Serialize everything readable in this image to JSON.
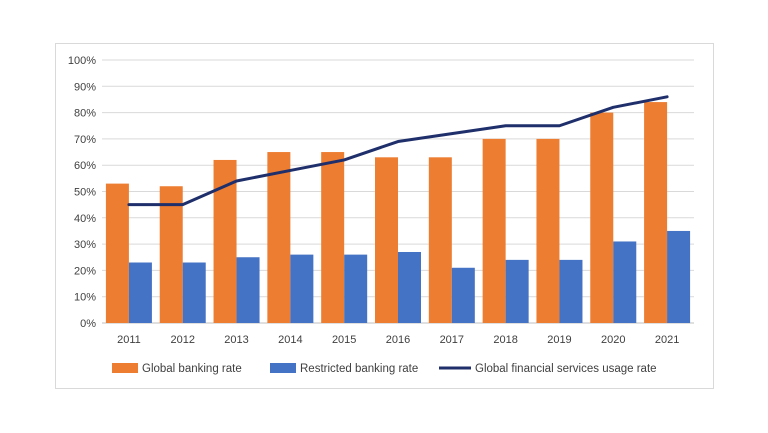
{
  "chart_data": {
    "type": "bar",
    "categories": [
      "2011",
      "2012",
      "2013",
      "2014",
      "2015",
      "2016",
      "2017",
      "2018",
      "2019",
      "2020",
      "2021"
    ],
    "series": [
      {
        "name": "Global banking rate",
        "type": "bar",
        "color": "#ed7d31",
        "values": [
          53,
          52,
          62,
          65,
          65,
          63,
          63,
          70,
          70,
          80,
          84
        ]
      },
      {
        "name": "Restricted banking rate",
        "type": "bar",
        "color": "#4472c4",
        "values": [
          23,
          23,
          25,
          26,
          26,
          27,
          21,
          24,
          24,
          31,
          35
        ]
      },
      {
        "name": "Global financial services usage rate",
        "type": "line",
        "color": "#1f2f6b",
        "values": [
          45,
          45,
          54,
          58,
          62,
          69,
          72,
          75,
          75,
          82,
          86
        ]
      }
    ],
    "y_ticks": [
      "0%",
      "10%",
      "20%",
      "30%",
      "40%",
      "50%",
      "60%",
      "70%",
      "80%",
      "90%",
      "100%"
    ],
    "ylim": [
      0,
      100
    ],
    "y_unit": "%",
    "grid": true,
    "legend_position": "bottom"
  }
}
